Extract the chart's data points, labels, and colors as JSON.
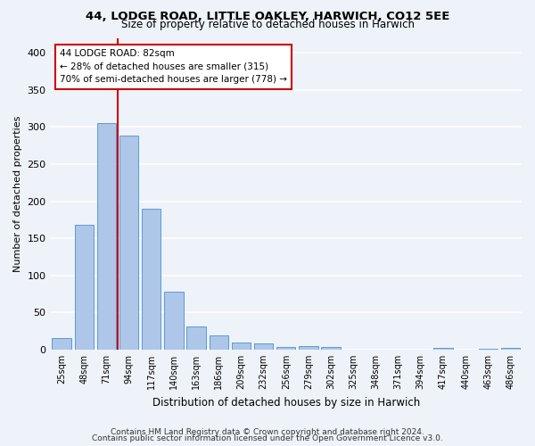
{
  "title": "44, LODGE ROAD, LITTLE OAKLEY, HARWICH, CO12 5EE",
  "subtitle": "Size of property relative to detached houses in Harwich",
  "xlabel": "Distribution of detached houses by size in Harwich",
  "ylabel": "Number of detached properties",
  "bar_labels": [
    "25sqm",
    "48sqm",
    "71sqm",
    "94sqm",
    "117sqm",
    "140sqm",
    "163sqm",
    "186sqm",
    "209sqm",
    "232sqm",
    "256sqm",
    "279sqm",
    "302sqm",
    "325sqm",
    "348sqm",
    "371sqm",
    "394sqm",
    "417sqm",
    "440sqm",
    "463sqm",
    "486sqm"
  ],
  "bar_heights": [
    15,
    168,
    305,
    288,
    190,
    78,
    31,
    19,
    10,
    8,
    4,
    5,
    3,
    0,
    0,
    0,
    0,
    2,
    0,
    1,
    2
  ],
  "bar_color": "#aec6e8",
  "bar_edge_color": "#5b9bd5",
  "ylim": [
    0,
    420
  ],
  "yticks": [
    0,
    50,
    100,
    150,
    200,
    250,
    300,
    350,
    400
  ],
  "vline_x": 2.5,
  "vline_color": "#cc0000",
  "annotation_title": "44 LODGE ROAD: 82sqm",
  "annotation_line1": "← 28% of detached houses are smaller (315)",
  "annotation_line2": "70% of semi-detached houses are larger (778) →",
  "annotation_box_color": "#cc0000",
  "footer_line1": "Contains HM Land Registry data © Crown copyright and database right 2024.",
  "footer_line2": "Contains public sector information licensed under the Open Government Licence v3.0.",
  "background_color": "#eef2f9",
  "grid_color": "#ffffff"
}
